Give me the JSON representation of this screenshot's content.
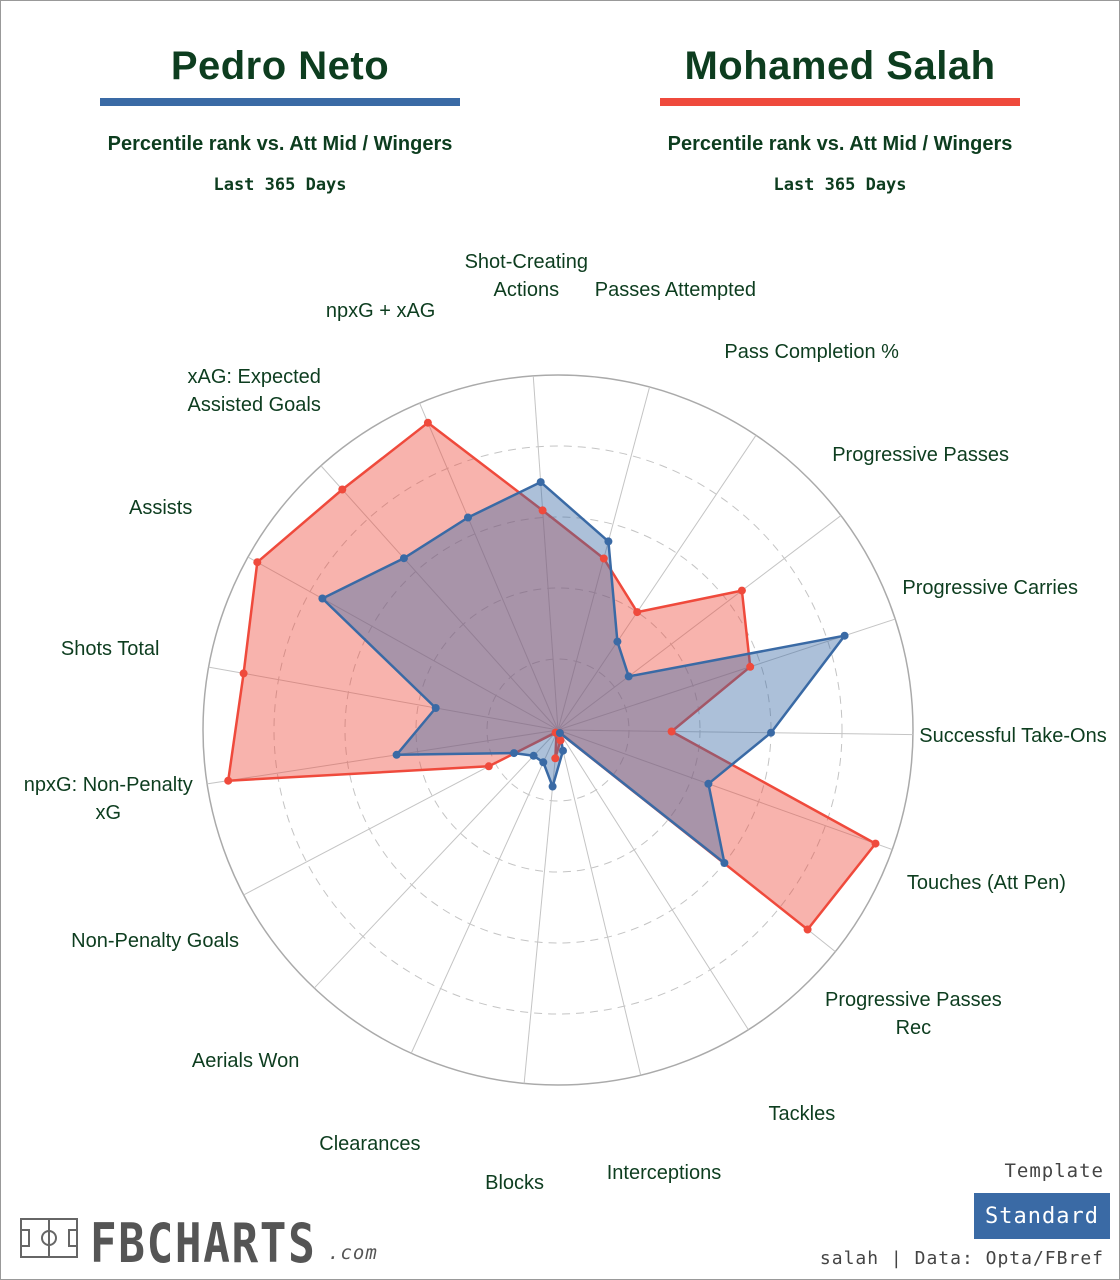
{
  "players": [
    {
      "name": "Pedro Neto",
      "color": "#3a6aa5",
      "subtitle": "Percentile rank vs. Att Mid / Wingers",
      "period": "Last 365 Days"
    },
    {
      "name": "Mohamed Salah",
      "color": "#ef4a3c",
      "subtitle": "Percentile rank vs. Att Mid / Wingers",
      "period": "Last 365 Days"
    }
  ],
  "chart_data": {
    "type": "radar",
    "scale": [
      0,
      100
    ],
    "grid": true,
    "rings": [
      20,
      40,
      60,
      80,
      100
    ],
    "categories": [
      "Shot-Creating Actions",
      "Passes Attempted",
      "Pass Completion %",
      "Progressive Passes",
      "Progressive Carries",
      "Successful Take-Ons",
      "Touches (Att Pen)",
      "Progressive Passes Rec",
      "Tackles",
      "Interceptions",
      "Blocks",
      "Clearances",
      "Aerials Won",
      "Non-Penalty Goals",
      "npxG: Non-Penalty xG",
      "Shots Total",
      "Assists",
      "xAG: Expected Assisted Goals",
      "npxG + xAG"
    ],
    "series": [
      {
        "name": "Pedro Neto",
        "color": "#3a6aa5",
        "values": [
          70,
          55,
          30,
          25,
          85,
          60,
          45,
          60,
          1,
          6,
          16,
          10,
          10,
          14,
          46,
          35,
          76,
          65,
          65
        ]
      },
      {
        "name": "Mohamed Salah",
        "color": "#ef4a3c",
        "values": [
          62,
          50,
          40,
          65,
          57,
          32,
          95,
          90,
          1,
          3,
          8,
          1,
          1,
          22,
          94,
          90,
          97,
          91,
          94
        ]
      }
    ]
  },
  "footer": {
    "logo_text": "FBCHARTS",
    "logo_sub": ".com",
    "template_label": "Template",
    "template_value": "Standard",
    "credit": "salah | Data: Opta/FBref"
  }
}
